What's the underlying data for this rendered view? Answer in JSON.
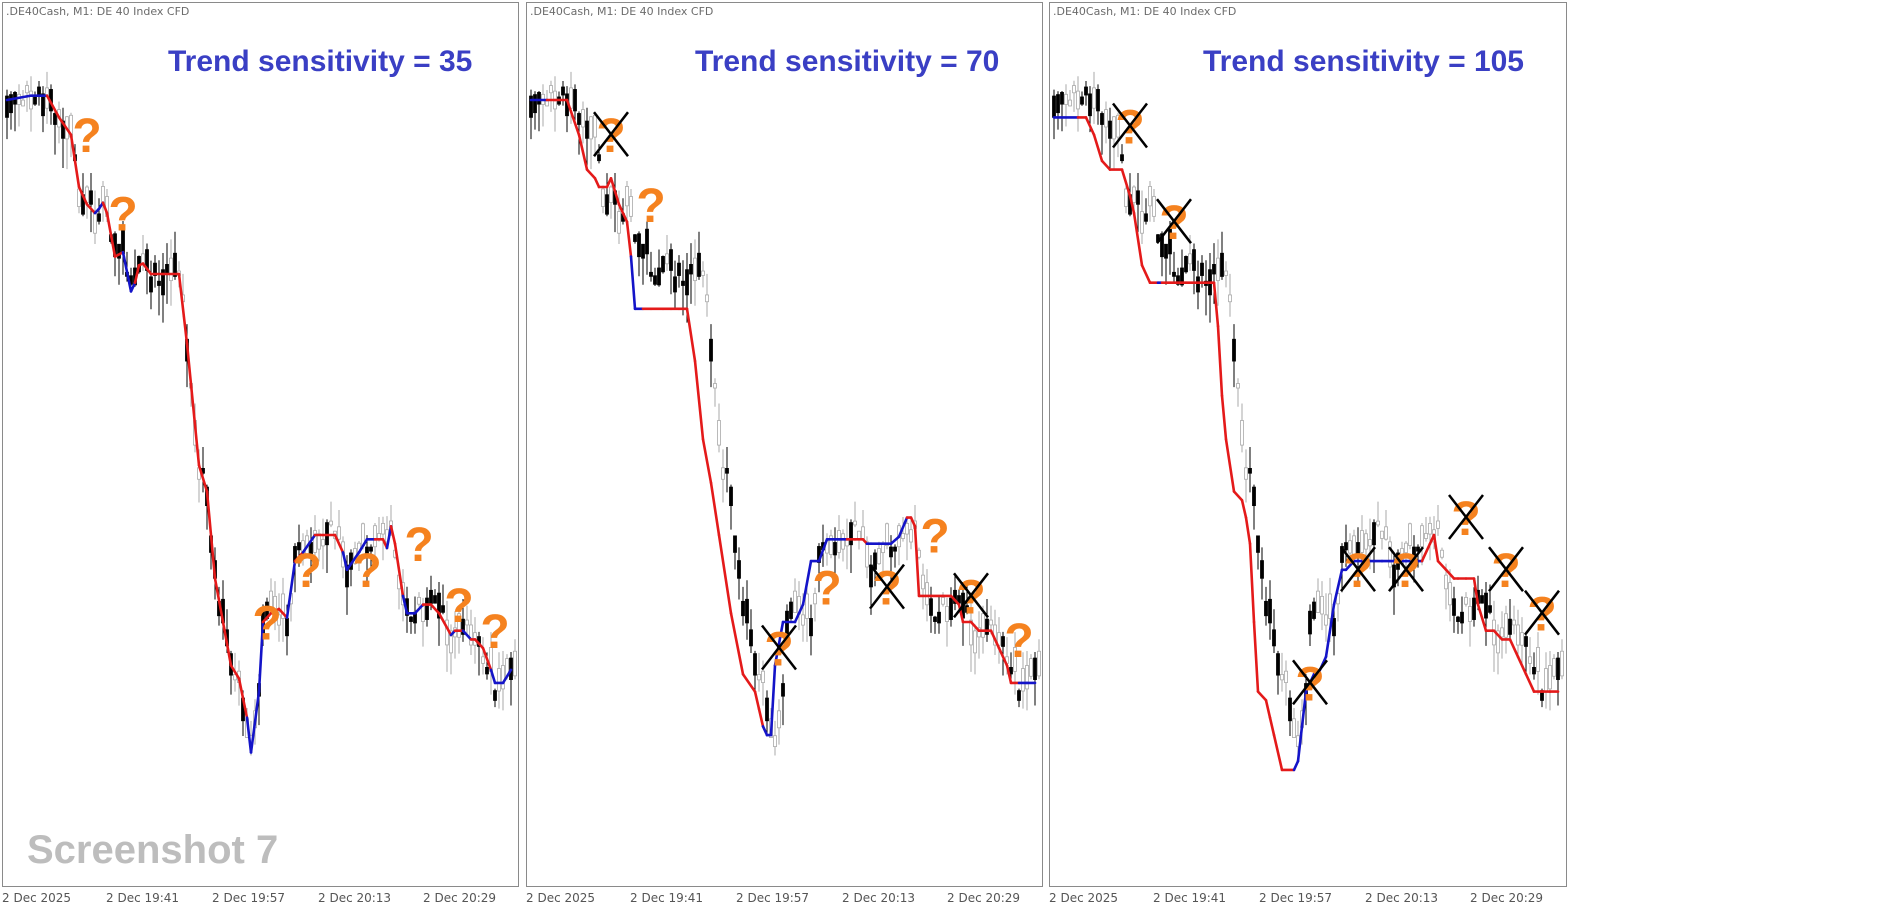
{
  "chart_data": [
    {
      "type": "candlestick",
      "symbol_label": ".DE40Cash, M1:  DE 40 Index CFD",
      "title": "Trend sensitivity = 35",
      "watermark": "Screenshot 7",
      "x_tick_labels": [
        "2 Dec 2025",
        "2 Dec 19:41",
        "2 Dec 19:57",
        "2 Dec 20:13",
        "2 Dec 20:29"
      ],
      "trend_line": [
        [
          0,
          0.9,
          "blue"
        ],
        [
          6,
          0.905,
          "blue"
        ],
        [
          10,
          0.905,
          "blue"
        ],
        [
          13,
          0.88,
          "red"
        ],
        [
          16,
          0.86,
          "red"
        ],
        [
          18,
          0.8,
          "red"
        ],
        [
          20,
          0.78,
          "red"
        ],
        [
          22,
          0.77,
          "red"
        ],
        [
          23,
          0.775,
          "blue"
        ],
        [
          24,
          0.782,
          "blue"
        ],
        [
          25,
          0.77,
          "red"
        ],
        [
          27,
          0.72,
          "red"
        ],
        [
          29,
          0.725,
          "red"
        ],
        [
          31,
          0.68,
          "blue"
        ],
        [
          32,
          0.69,
          "blue"
        ],
        [
          33,
          0.71,
          "red"
        ],
        [
          34,
          0.712,
          "red"
        ],
        [
          36,
          0.7,
          "red"
        ],
        [
          39,
          0.7,
          "red"
        ],
        [
          43,
          0.7,
          "red"
        ],
        [
          45,
          0.62,
          "red"
        ],
        [
          48,
          0.48,
          "red"
        ],
        [
          50,
          0.45,
          "red"
        ],
        [
          52,
          0.35,
          "red"
        ],
        [
          56,
          0.25,
          "red"
        ],
        [
          58,
          0.235,
          "red"
        ],
        [
          60,
          0.19,
          "red"
        ],
        [
          61,
          0.15,
          "blue"
        ],
        [
          63,
          0.22,
          "blue"
        ],
        [
          64,
          0.3,
          "blue"
        ],
        [
          66,
          0.31,
          "red"
        ],
        [
          68,
          0.315,
          "red"
        ],
        [
          70,
          0.305,
          "red"
        ],
        [
          72,
          0.37,
          "blue"
        ],
        [
          74,
          0.38,
          "red"
        ],
        [
          77,
          0.4,
          "blue"
        ],
        [
          79,
          0.4,
          "red"
        ],
        [
          82,
          0.4,
          "red"
        ],
        [
          84,
          0.38,
          "red"
        ],
        [
          85,
          0.36,
          "blue"
        ],
        [
          88,
          0.38,
          "blue"
        ],
        [
          90,
          0.395,
          "blue"
        ],
        [
          92,
          0.395,
          "blue"
        ],
        [
          94,
          0.395,
          "red"
        ],
        [
          95,
          0.385,
          "red"
        ],
        [
          96,
          0.41,
          "blue"
        ],
        [
          97,
          0.39,
          "red"
        ],
        [
          99,
          0.33,
          "red"
        ],
        [
          100,
          0.31,
          "blue"
        ],
        [
          102,
          0.31,
          "blue"
        ],
        [
          104,
          0.32,
          "blue"
        ],
        [
          106,
          0.32,
          "red"
        ],
        [
          108,
          0.31,
          "red"
        ],
        [
          111,
          0.285,
          "red"
        ],
        [
          112,
          0.29,
          "blue"
        ],
        [
          114,
          0.29,
          "red"
        ],
        [
          116,
          0.28,
          "blue"
        ],
        [
          117,
          0.28,
          "red"
        ],
        [
          119,
          0.27,
          "red"
        ],
        [
          121,
          0.245,
          "red"
        ],
        [
          122,
          0.23,
          "blue"
        ],
        [
          124,
          0.23,
          "blue"
        ],
        [
          126,
          0.245,
          "blue"
        ]
      ],
      "question_marks": [
        {
          "i": 20,
          "v": 0.84,
          "crossed": false
        },
        {
          "i": 29,
          "v": 0.75,
          "crossed": false
        },
        {
          "i": 65,
          "v": 0.28,
          "crossed": false
        },
        {
          "i": 75,
          "v": 0.34,
          "crossed": false
        },
        {
          "i": 90,
          "v": 0.34,
          "crossed": false
        },
        {
          "i": 103,
          "v": 0.37,
          "crossed": false
        },
        {
          "i": 113,
          "v": 0.3,
          "crossed": false
        },
        {
          "i": 122,
          "v": 0.27,
          "crossed": false
        }
      ]
    },
    {
      "type": "candlestick",
      "symbol_label": ".DE40Cash, M1:  DE 40 Index CFD",
      "title": "Trend sensitivity = 70",
      "watermark": "",
      "x_tick_labels": [
        "2 Dec 2025",
        "2 Dec 19:41",
        "2 Dec 19:57",
        "2 Dec 20:13",
        "2 Dec 20:29"
      ],
      "trend_line": [
        [
          0,
          0.9,
          "blue"
        ],
        [
          4,
          0.9,
          "blue"
        ],
        [
          6,
          0.9,
          "red"
        ],
        [
          9,
          0.9,
          "red"
        ],
        [
          12,
          0.86,
          "red"
        ],
        [
          14,
          0.82,
          "red"
        ],
        [
          16,
          0.81,
          "red"
        ],
        [
          17,
          0.8,
          "red"
        ],
        [
          19,
          0.8,
          "red"
        ],
        [
          20,
          0.81,
          "red"
        ],
        [
          22,
          0.78,
          "red"
        ],
        [
          24,
          0.76,
          "red"
        ],
        [
          25,
          0.72,
          "red"
        ],
        [
          26,
          0.66,
          "blue"
        ],
        [
          28,
          0.66,
          "blue"
        ],
        [
          30,
          0.66,
          "red"
        ],
        [
          33,
          0.66,
          "red"
        ],
        [
          35,
          0.66,
          "red"
        ],
        [
          37,
          0.66,
          "red"
        ],
        [
          39,
          0.66,
          "red"
        ],
        [
          41,
          0.6,
          "red"
        ],
        [
          43,
          0.51,
          "red"
        ],
        [
          45,
          0.46,
          "red"
        ],
        [
          47,
          0.4,
          "red"
        ],
        [
          50,
          0.31,
          "red"
        ],
        [
          53,
          0.24,
          "red"
        ],
        [
          56,
          0.22,
          "red"
        ],
        [
          57,
          0.2,
          "red"
        ],
        [
          58,
          0.18,
          "red"
        ],
        [
          59,
          0.17,
          "blue"
        ],
        [
          60,
          0.17,
          "blue"
        ],
        [
          61,
          0.25,
          "blue"
        ],
        [
          63,
          0.3,
          "blue"
        ],
        [
          66,
          0.3,
          "blue"
        ],
        [
          68,
          0.32,
          "blue"
        ],
        [
          70,
          0.37,
          "blue"
        ],
        [
          72,
          0.37,
          "blue"
        ],
        [
          74,
          0.395,
          "blue"
        ],
        [
          77,
          0.395,
          "blue"
        ],
        [
          79,
          0.395,
          "blue"
        ],
        [
          81,
          0.395,
          "red"
        ],
        [
          83,
          0.395,
          "red"
        ],
        [
          84,
          0.39,
          "red"
        ],
        [
          85,
          0.39,
          "blue"
        ],
        [
          90,
          0.39,
          "blue"
        ],
        [
          92,
          0.398,
          "blue"
        ],
        [
          94,
          0.42,
          "blue"
        ],
        [
          95,
          0.42,
          "red"
        ],
        [
          96,
          0.41,
          "red"
        ],
        [
          97,
          0.33,
          "red"
        ],
        [
          100,
          0.33,
          "red"
        ],
        [
          103,
          0.33,
          "red"
        ],
        [
          105,
          0.33,
          "red"
        ],
        [
          107,
          0.32,
          "red"
        ],
        [
          108,
          0.3,
          "red"
        ],
        [
          110,
          0.3,
          "red"
        ],
        [
          112,
          0.29,
          "red"
        ],
        [
          115,
          0.29,
          "red"
        ],
        [
          117,
          0.27,
          "red"
        ],
        [
          119,
          0.25,
          "red"
        ],
        [
          120,
          0.23,
          "red"
        ],
        [
          122,
          0.23,
          "red"
        ],
        [
          124,
          0.23,
          "blue"
        ],
        [
          126,
          0.23,
          "blue"
        ]
      ],
      "question_marks": [
        {
          "i": 20,
          "v": 0.84,
          "crossed": true
        },
        {
          "i": 30,
          "v": 0.76,
          "crossed": false
        },
        {
          "i": 62,
          "v": 0.25,
          "crossed": true
        },
        {
          "i": 74,
          "v": 0.32,
          "crossed": false
        },
        {
          "i": 89,
          "v": 0.32,
          "crossed": true
        },
        {
          "i": 101,
          "v": 0.38,
          "crossed": false
        },
        {
          "i": 110,
          "v": 0.31,
          "crossed": true
        },
        {
          "i": 122,
          "v": 0.26,
          "crossed": false
        }
      ]
    },
    {
      "type": "candlestick",
      "symbol_label": ".DE40Cash, M1:  DE 40 Index CFD",
      "title": "Trend sensitivity = 105",
      "watermark": "",
      "x_tick_labels": [
        "2 Dec 2025",
        "2 Dec 19:41",
        "2 Dec 19:57",
        "2 Dec 20:13",
        "2 Dec 20:29"
      ],
      "trend_line": [
        [
          0,
          0.88,
          "blue"
        ],
        [
          6,
          0.88,
          "blue"
        ],
        [
          8,
          0.88,
          "red"
        ],
        [
          10,
          0.86,
          "red"
        ],
        [
          12,
          0.83,
          "red"
        ],
        [
          14,
          0.82,
          "red"
        ],
        [
          17,
          0.82,
          "red"
        ],
        [
          19,
          0.79,
          "red"
        ],
        [
          20,
          0.77,
          "red"
        ],
        [
          22,
          0.71,
          "red"
        ],
        [
          24,
          0.69,
          "red"
        ],
        [
          26,
          0.69,
          "red"
        ],
        [
          27,
          0.69,
          "blue"
        ],
        [
          29,
          0.69,
          "red"
        ],
        [
          31,
          0.69,
          "red"
        ],
        [
          33,
          0.69,
          "red"
        ],
        [
          35,
          0.69,
          "red"
        ],
        [
          38,
          0.69,
          "red"
        ],
        [
          40,
          0.69,
          "red"
        ],
        [
          41,
          0.64,
          "red"
        ],
        [
          42,
          0.56,
          "red"
        ],
        [
          43,
          0.51,
          "red"
        ],
        [
          45,
          0.45,
          "red"
        ],
        [
          47,
          0.44,
          "red"
        ],
        [
          48,
          0.42,
          "red"
        ],
        [
          49,
          0.39,
          "red"
        ],
        [
          50,
          0.3,
          "red"
        ],
        [
          51,
          0.22,
          "red"
        ],
        [
          53,
          0.21,
          "red"
        ],
        [
          54,
          0.19,
          "red"
        ],
        [
          55,
          0.17,
          "red"
        ],
        [
          57,
          0.13,
          "red"
        ],
        [
          60,
          0.13,
          "red"
        ],
        [
          61,
          0.14,
          "blue"
        ],
        [
          62,
          0.18,
          "blue"
        ],
        [
          63,
          0.22,
          "blue"
        ],
        [
          65,
          0.24,
          "blue"
        ],
        [
          66,
          0.24,
          "blue"
        ],
        [
          68,
          0.26,
          "blue"
        ],
        [
          70,
          0.32,
          "blue"
        ],
        [
          72,
          0.36,
          "blue"
        ],
        [
          73,
          0.36,
          "blue"
        ],
        [
          75,
          0.37,
          "blue"
        ],
        [
          77,
          0.37,
          "blue"
        ],
        [
          80,
          0.37,
          "blue"
        ],
        [
          82,
          0.37,
          "blue"
        ],
        [
          84,
          0.37,
          "blue"
        ],
        [
          86,
          0.37,
          "blue"
        ],
        [
          88,
          0.37,
          "blue"
        ],
        [
          90,
          0.37,
          "blue"
        ],
        [
          92,
          0.37,
          "blue"
        ],
        [
          94,
          0.39,
          "red"
        ],
        [
          95,
          0.4,
          "red"
        ],
        [
          96,
          0.37,
          "red"
        ],
        [
          98,
          0.36,
          "red"
        ],
        [
          100,
          0.35,
          "red"
        ],
        [
          101,
          0.35,
          "red"
        ],
        [
          103,
          0.35,
          "red"
        ],
        [
          105,
          0.35,
          "red"
        ],
        [
          106,
          0.32,
          "red"
        ],
        [
          108,
          0.29,
          "red"
        ],
        [
          110,
          0.29,
          "red"
        ],
        [
          112,
          0.28,
          "red"
        ],
        [
          114,
          0.28,
          "red"
        ],
        [
          116,
          0.26,
          "red"
        ],
        [
          118,
          0.24,
          "red"
        ],
        [
          120,
          0.22,
          "red"
        ],
        [
          122,
          0.22,
          "red"
        ],
        [
          124,
          0.22,
          "red"
        ],
        [
          126,
          0.22,
          "red"
        ]
      ],
      "question_marks": [
        {
          "i": 19,
          "v": 0.85,
          "crossed": true
        },
        {
          "i": 30,
          "v": 0.74,
          "crossed": true
        },
        {
          "i": 64,
          "v": 0.21,
          "crossed": true
        },
        {
          "i": 76,
          "v": 0.34,
          "crossed": true
        },
        {
          "i": 88,
          "v": 0.34,
          "crossed": true
        },
        {
          "i": 103,
          "v": 0.4,
          "crossed": true
        },
        {
          "i": 113,
          "v": 0.34,
          "crossed": true
        },
        {
          "i": 122,
          "v": 0.29,
          "crossed": true
        }
      ]
    }
  ],
  "colors": {
    "bull": "#a9a9a9",
    "bear": "#000000",
    "trend_up": "#1414c8",
    "trend_down": "#e41a1a",
    "question": "#f5821f",
    "title": "#3a3fc4",
    "watermark": "#bdbdbd"
  }
}
